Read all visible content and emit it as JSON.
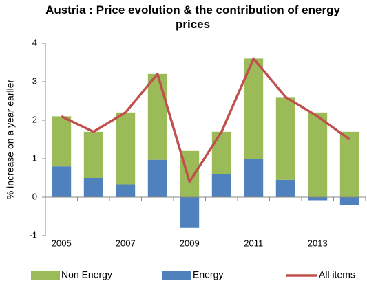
{
  "chart_data": {
    "type": "bar-line",
    "title": "Austria : Price evolution & the contribution of energy prices",
    "y_label": "% increase on a year earlier",
    "categories": [
      "2005",
      null,
      "2007",
      null,
      "2009",
      null,
      "2011",
      null,
      "2013",
      null
    ],
    "series": [
      {
        "name": "Non Energy",
        "type": "bar",
        "color": "#9bbb59",
        "values": [
          1.3,
          1.2,
          1.87,
          2.23,
          1.2,
          1.1,
          2.6,
          2.15,
          2.2,
          1.7
        ]
      },
      {
        "name": "Energy",
        "type": "bar",
        "color": "#4f81bd",
        "values": [
          0.8,
          0.5,
          0.33,
          0.97,
          -0.8,
          0.6,
          1.0,
          0.45,
          -0.08,
          -0.2
        ]
      },
      {
        "name": "All items",
        "type": "line",
        "color": "#c0504d",
        "values": [
          2.1,
          1.7,
          2.2,
          3.2,
          0.4,
          1.7,
          3.6,
          2.6,
          2.1,
          1.5
        ]
      }
    ],
    "ylim": [
      -1,
      4
    ],
    "yticks": [
      -1,
      0,
      1,
      2,
      3,
      4
    ],
    "grid": false,
    "legend": "bottom"
  }
}
